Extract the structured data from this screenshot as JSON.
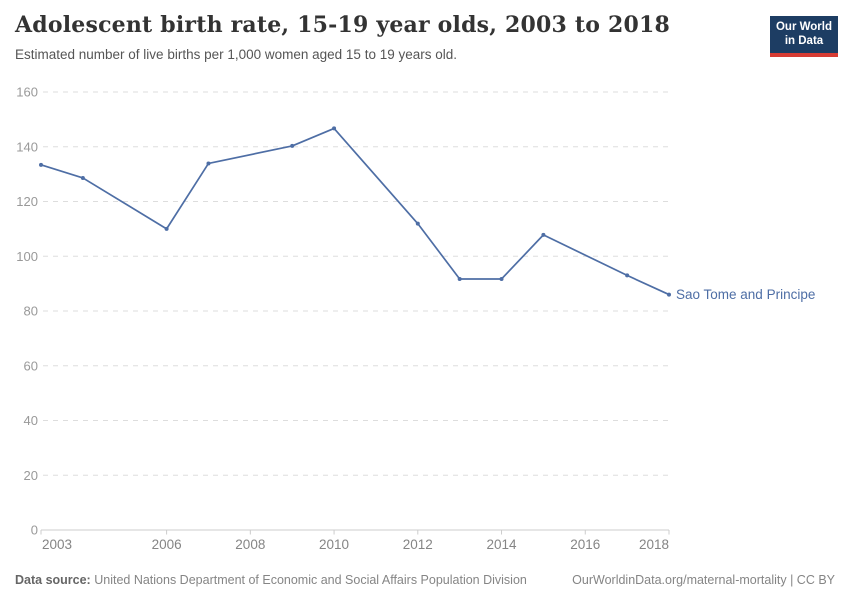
{
  "header": {
    "title": "Adolescent birth rate, 15-19 year olds, 2003 to 2018",
    "subtitle": "Estimated number of live births per 1,000 women aged 15 to 19 years old."
  },
  "logo": {
    "line1": "Our World",
    "line2": "in Data",
    "bg_color": "#1d3d63",
    "bar_color": "#d73c34"
  },
  "chart_data": {
    "type": "line",
    "title": "Adolescent birth rate, 15-19 year olds, 2003 to 2018",
    "xlabel": "",
    "ylabel": "",
    "xlim": [
      2003,
      2018
    ],
    "ylim": [
      0,
      160
    ],
    "xticks": [
      2003,
      2006,
      2008,
      2010,
      2012,
      2014,
      2016,
      2018
    ],
    "yticks": [
      0,
      20,
      40,
      60,
      80,
      100,
      120,
      140,
      160
    ],
    "grid": "horizontal-dashed",
    "legend_position": "line-end-label",
    "series": [
      {
        "name": "Sao Tome and Principe",
        "color": "#4e6ea5",
        "x": [
          2003,
          2004,
          2006,
          2007,
          2009,
          2010,
          2012,
          2013,
          2014,
          2015,
          2017,
          2018
        ],
        "values": [
          133.4,
          128.6,
          110,
          133.9,
          140.3,
          146.7,
          111.9,
          91.7,
          91.7,
          107.8,
          93,
          86
        ]
      }
    ]
  },
  "footer": {
    "source_label": "Data source:",
    "source_text": "United Nations Department of Economic and Social Affairs Population Division",
    "link_text": "OurWorldinData.org/maternal-mortality | CC BY"
  },
  "colors": {
    "line": "#4e6ea5",
    "axis": "#cccccc",
    "gridline": "#dddddd",
    "y_tick_label": "#999999",
    "x_tick_label": "#858585",
    "title": "#333333",
    "subtitle": "#555555",
    "footer": "#858585"
  }
}
